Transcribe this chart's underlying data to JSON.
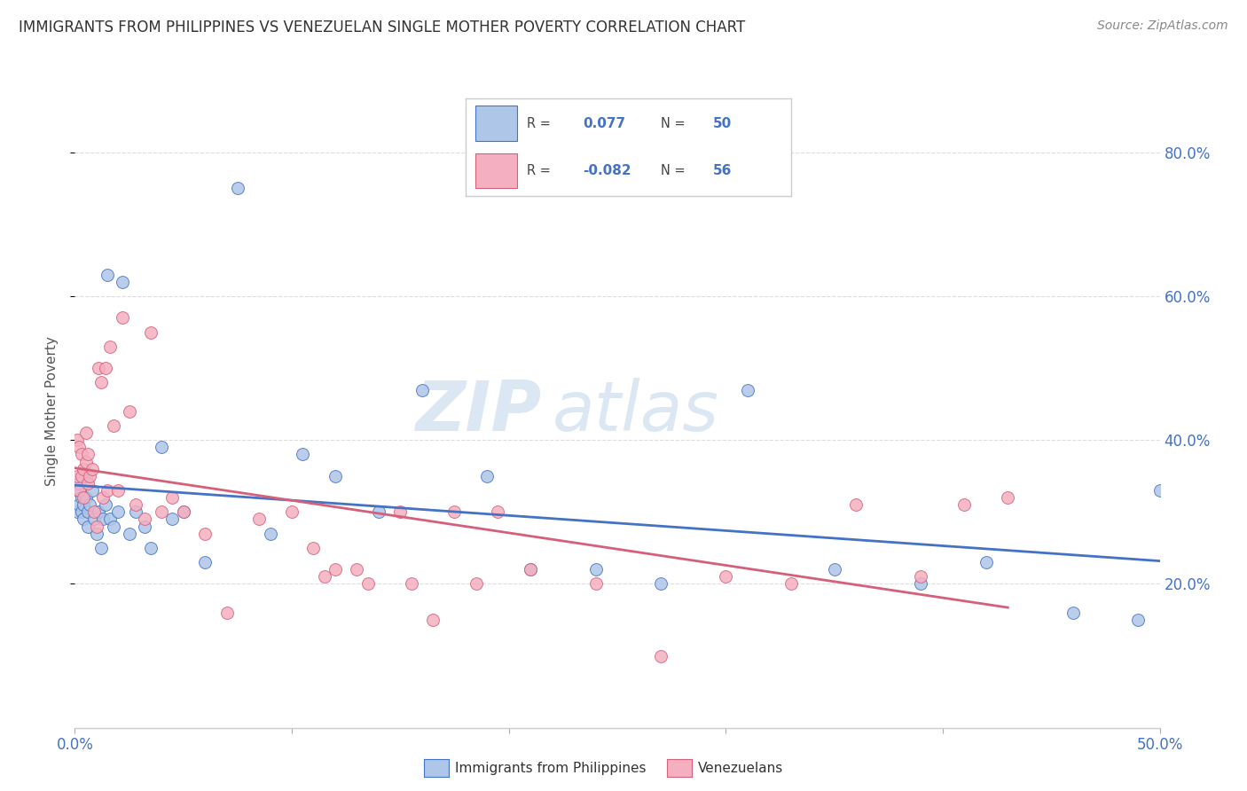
{
  "title": "IMMIGRANTS FROM PHILIPPINES VS VENEZUELAN SINGLE MOTHER POVERTY CORRELATION CHART",
  "source": "Source: ZipAtlas.com",
  "ylabel": "Single Mother Poverty",
  "ylabel_right_ticks": [
    "20.0%",
    "40.0%",
    "60.0%",
    "80.0%"
  ],
  "ylabel_right_vals": [
    0.2,
    0.4,
    0.6,
    0.8
  ],
  "legend_label1": "Immigrants from Philippines",
  "legend_label2": "Venezuelans",
  "legend_R1_val": "0.077",
  "legend_N1_val": "50",
  "legend_R2_val": "-0.082",
  "legend_N2_val": "56",
  "color_philippines": "#aec6e8",
  "color_venezuela": "#f4afc0",
  "color_line_philippines": "#4472c4",
  "color_line_venezuela": "#d4607a",
  "watermark_part1": "ZIP",
  "watermark_part2": "atlas",
  "philippines_x": [
    0.001,
    0.001,
    0.002,
    0.002,
    0.003,
    0.003,
    0.004,
    0.004,
    0.005,
    0.005,
    0.006,
    0.006,
    0.007,
    0.008,
    0.009,
    0.01,
    0.011,
    0.012,
    0.013,
    0.014,
    0.015,
    0.016,
    0.018,
    0.02,
    0.022,
    0.025,
    0.028,
    0.032,
    0.035,
    0.04,
    0.045,
    0.05,
    0.06,
    0.075,
    0.09,
    0.105,
    0.12,
    0.14,
    0.16,
    0.19,
    0.21,
    0.24,
    0.27,
    0.31,
    0.35,
    0.39,
    0.42,
    0.46,
    0.49,
    0.5
  ],
  "philippines_y": [
    0.33,
    0.3,
    0.34,
    0.31,
    0.3,
    0.32,
    0.29,
    0.31,
    0.35,
    0.32,
    0.3,
    0.28,
    0.31,
    0.33,
    0.29,
    0.27,
    0.3,
    0.25,
    0.29,
    0.31,
    0.63,
    0.29,
    0.28,
    0.3,
    0.62,
    0.27,
    0.3,
    0.28,
    0.25,
    0.39,
    0.29,
    0.3,
    0.23,
    0.75,
    0.27,
    0.38,
    0.35,
    0.3,
    0.47,
    0.35,
    0.22,
    0.22,
    0.2,
    0.47,
    0.22,
    0.2,
    0.23,
    0.16,
    0.15,
    0.33
  ],
  "venezuela_x": [
    0.001,
    0.001,
    0.002,
    0.002,
    0.003,
    0.003,
    0.004,
    0.004,
    0.005,
    0.005,
    0.006,
    0.006,
    0.007,
    0.008,
    0.009,
    0.01,
    0.011,
    0.012,
    0.013,
    0.014,
    0.015,
    0.016,
    0.018,
    0.02,
    0.022,
    0.025,
    0.028,
    0.032,
    0.035,
    0.04,
    0.045,
    0.05,
    0.06,
    0.07,
    0.085,
    0.1,
    0.115,
    0.13,
    0.15,
    0.165,
    0.185,
    0.21,
    0.24,
    0.27,
    0.3,
    0.33,
    0.36,
    0.39,
    0.41,
    0.43,
    0.11,
    0.12,
    0.135,
    0.155,
    0.175,
    0.195
  ],
  "venezuela_y": [
    0.4,
    0.35,
    0.39,
    0.33,
    0.38,
    0.35,
    0.36,
    0.32,
    0.41,
    0.37,
    0.38,
    0.34,
    0.35,
    0.36,
    0.3,
    0.28,
    0.5,
    0.48,
    0.32,
    0.5,
    0.33,
    0.53,
    0.42,
    0.33,
    0.57,
    0.44,
    0.31,
    0.29,
    0.55,
    0.3,
    0.32,
    0.3,
    0.27,
    0.16,
    0.29,
    0.3,
    0.21,
    0.22,
    0.3,
    0.15,
    0.2,
    0.22,
    0.2,
    0.1,
    0.21,
    0.2,
    0.31,
    0.21,
    0.31,
    0.32,
    0.25,
    0.22,
    0.2,
    0.2,
    0.3,
    0.3
  ],
  "xlim": [
    0.0,
    0.5
  ],
  "ylim": [
    0.0,
    0.88
  ],
  "background_color": "#ffffff",
  "grid_color": "#dddddd"
}
